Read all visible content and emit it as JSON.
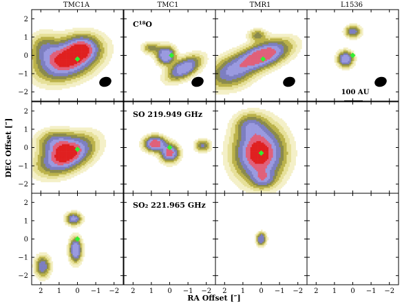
{
  "chart_data": {
    "type": "contour",
    "title": "",
    "xlabel": "RA Offset [″]",
    "ylabel": "DEC Offset [″]",
    "xlim": [
      2.5,
      -2.5
    ],
    "ylim": [
      -2.5,
      2.5
    ],
    "x_ticks": [
      2,
      1,
      0,
      -1,
      -2
    ],
    "y_ticks": [
      2,
      1,
      0,
      -1,
      -2
    ],
    "columns": [
      "TMC1A",
      "TMC1",
      "TMR1",
      "L1536"
    ],
    "rows": [
      {
        "label": "C¹⁸O",
        "label_col": 1
      },
      {
        "label": "SO 219.949 GHz",
        "label_col": 1
      },
      {
        "label": "SO₂ 221.965 GHz",
        "label_col": 1
      }
    ],
    "scale_bar": {
      "label": "100 AU",
      "panel": [
        0,
        3
      ]
    },
    "beam_panels": [
      [
        0,
        0
      ],
      [
        0,
        1
      ],
      [
        0,
        2
      ],
      [
        0,
        3
      ]
    ],
    "colors": {
      "levels": [
        "#ffffff",
        "#f4f0c8",
        "#e6e098",
        "#bbb24a",
        "#8a8a4c",
        "#7c7ec0",
        "#9a9ae0",
        "#e0607a",
        "#e02020"
      ],
      "peak_marker": "#33ee33",
      "line": "#000000"
    },
    "panels": [
      [
        {
          "sources": [
            {
              "x": 0.5,
              "y": -0.2,
              "amp": 1.0,
              "sx": 1.0,
              "sy": 0.6,
              "rot": -20
            },
            {
              "x": -0.3,
              "y": 0.4,
              "amp": 0.45,
              "sx": 0.5,
              "sy": 0.4,
              "rot": 0
            },
            {
              "x": 1.8,
              "y": 0.4,
              "amp": 0.3,
              "sx": 0.5,
              "sy": 0.5,
              "rot": 0
            }
          ],
          "max_level": 7,
          "peak": [
            0,
            -0.2
          ]
        },
        {
          "sources": [
            {
              "x": 0.2,
              "y": 0.0,
              "amp": 0.8,
              "sx": 0.3,
              "sy": 0.3,
              "rot": 0
            },
            {
              "x": -0.8,
              "y": -0.7,
              "amp": 0.7,
              "sx": 0.6,
              "sy": 0.3,
              "rot": -30
            },
            {
              "x": 1.0,
              "y": 0.4,
              "amp": 0.3,
              "sx": 0.3,
              "sy": 0.2,
              "rot": 0
            }
          ],
          "max_level": 5,
          "peak": [
            -0.1,
            0.0
          ]
        },
        {
          "sources": [
            {
              "x": -0.1,
              "y": 0.0,
              "amp": 0.9,
              "sx": 0.9,
              "sy": 0.4,
              "rot": -20
            },
            {
              "x": 1.6,
              "y": -0.9,
              "amp": 0.5,
              "sx": 0.8,
              "sy": 0.5,
              "rot": -20
            },
            {
              "x": 0.2,
              "y": 1.1,
              "amp": 0.3,
              "sx": 0.3,
              "sy": 0.2,
              "rot": 0
            }
          ],
          "max_level": 6,
          "peak": [
            -0.1,
            -0.2
          ]
        },
        {
          "sources": [
            {
              "x": 0.4,
              "y": -0.2,
              "amp": 0.75,
              "sx": 0.25,
              "sy": 0.25,
              "rot": 0
            },
            {
              "x": 0.0,
              "y": 1.3,
              "amp": 0.5,
              "sx": 0.25,
              "sy": 0.2,
              "rot": 0
            }
          ],
          "max_level": 5,
          "peak": [
            0.0,
            0.0
          ]
        }
      ],
      [
        {
          "sources": [
            {
              "x": 0.6,
              "y": -0.4,
              "amp": 1.0,
              "sx": 0.9,
              "sy": 0.5,
              "rot": -25
            },
            {
              "x": 1.2,
              "y": 0.3,
              "amp": 0.4,
              "sx": 0.6,
              "sy": 0.4,
              "rot": 0
            }
          ],
          "max_level": 7,
          "peak": [
            0.0,
            -0.1
          ]
        },
        {
          "sources": [
            {
              "x": 0.8,
              "y": 0.2,
              "amp": 0.9,
              "sx": 0.35,
              "sy": 0.25,
              "rot": 0
            },
            {
              "x": 0.0,
              "y": -0.3,
              "amp": 0.8,
              "sx": 0.3,
              "sy": 0.3,
              "rot": 0
            },
            {
              "x": -1.8,
              "y": 0.1,
              "amp": 0.4,
              "sx": 0.25,
              "sy": 0.2,
              "rot": 0
            }
          ],
          "max_level": 6,
          "peak": [
            0.0,
            0.0
          ]
        },
        {
          "sources": [
            {
              "x": 0.1,
              "y": -0.3,
              "amp": 1.0,
              "sx": 0.8,
              "sy": 0.9,
              "rot": 0
            },
            {
              "x": 0.6,
              "y": 1.2,
              "amp": 0.35,
              "sx": 0.5,
              "sy": 0.4,
              "rot": 0
            },
            {
              "x": -0.1,
              "y": -1.7,
              "amp": 0.4,
              "sx": 0.4,
              "sy": 0.3,
              "rot": 0
            }
          ],
          "max_level": 7,
          "peak": [
            0.0,
            -0.3
          ]
        },
        {
          "sources": [],
          "max_level": 0,
          "peak": null
        }
      ],
      [
        {
          "sources": [
            {
              "x": 0.2,
              "y": 1.1,
              "amp": 0.6,
              "sx": 0.25,
              "sy": 0.2,
              "rot": 0
            },
            {
              "x": 0.1,
              "y": -0.6,
              "amp": 0.75,
              "sx": 0.2,
              "sy": 0.4,
              "rot": 0
            },
            {
              "x": 1.9,
              "y": -1.5,
              "amp": 0.5,
              "sx": 0.25,
              "sy": 0.35,
              "rot": 0
            }
          ],
          "max_level": 5,
          "peak": [
            0.0,
            0.0
          ]
        },
        {
          "sources": [],
          "max_level": 0,
          "peak": null
        },
        {
          "sources": [
            {
              "x": 0.0,
              "y": 0.0,
              "amp": 0.7,
              "sx": 0.15,
              "sy": 0.2,
              "rot": 0
            }
          ],
          "max_level": 4,
          "peak": null
        },
        {
          "sources": [],
          "max_level": 0,
          "peak": null
        }
      ]
    ]
  }
}
